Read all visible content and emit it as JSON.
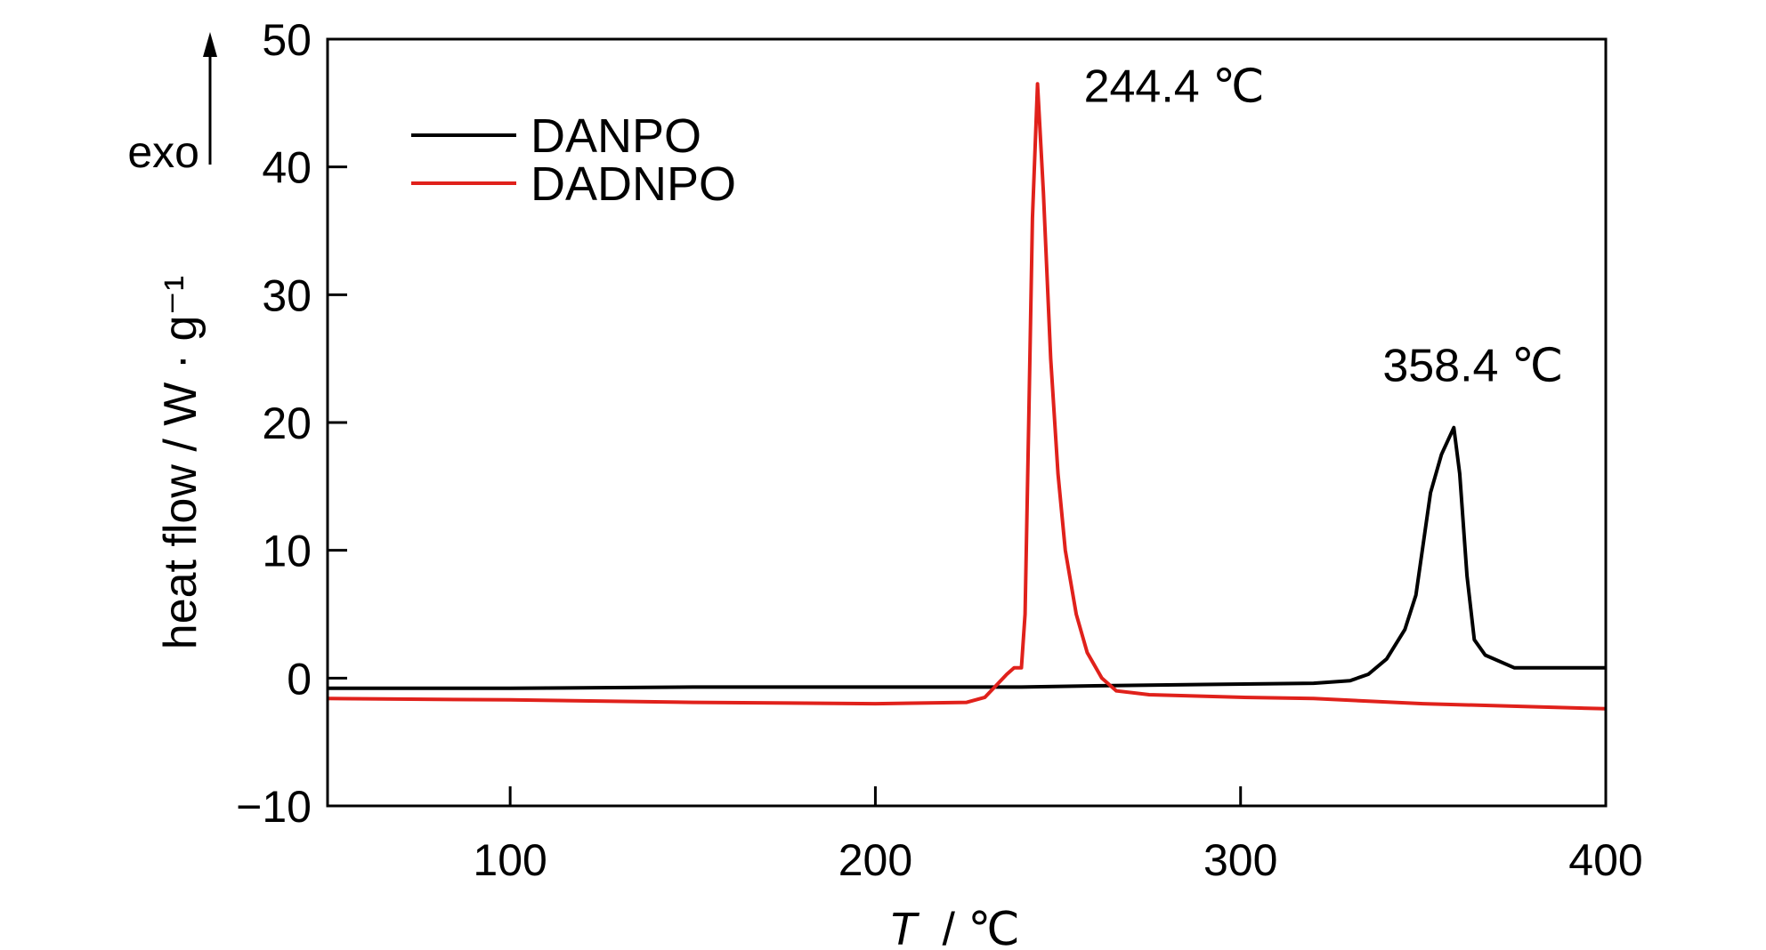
{
  "chart_data": {
    "type": "line",
    "xlabel_italic": "T",
    "xlabel_unit": "/ ℃",
    "ylabel": "heat flow / W · g⁻¹",
    "exo_label": "exo",
    "xlim": [
      50,
      400
    ],
    "ylim": [
      -10,
      50
    ],
    "x_ticks": [
      100,
      200,
      300,
      400
    ],
    "y_ticks": [
      -10,
      0,
      10,
      20,
      30,
      40,
      50
    ],
    "grid": false,
    "legend_position": "top-left",
    "series": [
      {
        "name": "DANPO",
        "color": "#000000",
        "points": [
          [
            50,
            -0.8
          ],
          [
            100,
            -0.8
          ],
          [
            150,
            -0.7
          ],
          [
            200,
            -0.7
          ],
          [
            240,
            -0.7
          ],
          [
            260,
            -0.6
          ],
          [
            290,
            -0.5
          ],
          [
            320,
            -0.4
          ],
          [
            330,
            -0.2
          ],
          [
            335,
            0.3
          ],
          [
            340,
            1.5
          ],
          [
            345,
            3.8
          ],
          [
            348,
            6.5
          ],
          [
            350,
            10.5
          ],
          [
            352,
            14.5
          ],
          [
            355,
            17.5
          ],
          [
            358.4,
            19.6
          ],
          [
            360,
            16
          ],
          [
            362,
            8
          ],
          [
            364,
            3
          ],
          [
            367,
            1.8
          ],
          [
            375,
            0.8
          ],
          [
            400,
            0.8
          ]
        ]
      },
      {
        "name": "DADNPO",
        "color": "#e0211b",
        "points": [
          [
            50,
            -1.6
          ],
          [
            100,
            -1.7
          ],
          [
            150,
            -1.9
          ],
          [
            200,
            -2.0
          ],
          [
            225,
            -1.9
          ],
          [
            230,
            -1.5
          ],
          [
            233,
            -0.6
          ],
          [
            236,
            0.3
          ],
          [
            238,
            0.8
          ],
          [
            240,
            0.8
          ],
          [
            241,
            5
          ],
          [
            242,
            20
          ],
          [
            243,
            36
          ],
          [
            244.4,
            46.5
          ],
          [
            246,
            38
          ],
          [
            248,
            25
          ],
          [
            250,
            16
          ],
          [
            252,
            10
          ],
          [
            255,
            5
          ],
          [
            258,
            2
          ],
          [
            262,
            0
          ],
          [
            266,
            -1
          ],
          [
            275,
            -1.3
          ],
          [
            300,
            -1.5
          ],
          [
            320,
            -1.6
          ],
          [
            350,
            -2.0
          ],
          [
            400,
            -2.4
          ]
        ]
      }
    ],
    "annotations": [
      {
        "text": "244.4 ℃",
        "x": 244.4,
        "y": 46.5
      },
      {
        "text": "358.4 ℃",
        "x": 358.4,
        "y": 19.6
      }
    ]
  }
}
